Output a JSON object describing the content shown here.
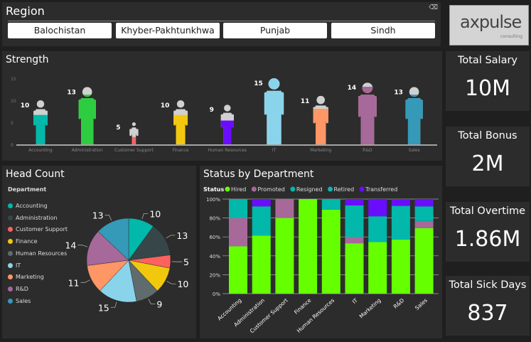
{
  "region": {
    "title": "Region",
    "buttons": [
      "Balochistan",
      "Khyber-Pakhtunkhwa",
      "Punjab",
      "Sindh"
    ],
    "clear_icon": "eraser-icon"
  },
  "logo": {
    "text": "axpulse",
    "sub": "consulting"
  },
  "departments": [
    "Accounting",
    "Administration",
    "Customer Support",
    "Finance",
    "Human Resources",
    "IT",
    "Marketing",
    "R&D",
    "Sales"
  ],
  "colors": {
    "Accounting": "#01b8aa",
    "Administration": "#374649",
    "Customer Support": "#fd625e",
    "Finance": "#f2c80f",
    "Human Resources": "#5f6b6d",
    "IT": "#8ad4eb",
    "Marketing": "#fe9666",
    "R&D": "#a66999",
    "Sales": "#3599b8"
  },
  "strength": {
    "title": "Strength",
    "y_ticks": [
      "0",
      "5",
      "10",
      "15"
    ],
    "ylim": [
      0,
      15
    ]
  },
  "headcount": {
    "title": "Head Count",
    "legend_title": "Department"
  },
  "status": {
    "title": "Status by Department",
    "legend_title": "Status",
    "y_ticks": [
      "0%",
      "20%",
      "40%",
      "60%",
      "80%",
      "100%"
    ]
  },
  "chart_data": [
    {
      "type": "bar",
      "title": "Strength",
      "categories": [
        "Accounting",
        "Administration",
        "Customer Support",
        "Finance",
        "Human Resources",
        "IT",
        "Marketing",
        "R&D",
        "Sales"
      ],
      "values": [
        10,
        13,
        5,
        10,
        9,
        15,
        11,
        14,
        13
      ],
      "ylim": [
        0,
        15
      ],
      "figure_colors": [
        "#01b8aa",
        "#2ecc40",
        "#fd625e",
        "#f2c80f",
        "#6a0dff",
        "#8ad4eb",
        "#fe9666",
        "#a66999",
        "#3599b8"
      ]
    },
    {
      "type": "pie",
      "title": "Head Count",
      "categories": [
        "Accounting",
        "Administration",
        "Customer Support",
        "Finance",
        "Human Resources",
        "IT",
        "Marketing",
        "R&D",
        "Sales"
      ],
      "values": [
        10,
        13,
        5,
        10,
        9,
        15,
        11,
        14,
        13
      ]
    },
    {
      "type": "bar",
      "stacked": "100%",
      "title": "Status by Department",
      "categories": [
        "Accounting",
        "Administration",
        "Customer Support",
        "Finance",
        "Human Resources",
        "IT",
        "Marketing",
        "R&D",
        "Sales"
      ],
      "series": [
        {
          "name": "Hired",
          "color": "#66ff00",
          "values": [
            50,
            61.5,
            80,
            100,
            88.9,
            53.3,
            54.5,
            57.1,
            69.2
          ]
        },
        {
          "name": "Promoted",
          "color": "#a66999",
          "values": [
            30,
            0,
            20,
            0,
            0,
            6.7,
            0,
            0,
            7.7
          ]
        },
        {
          "name": "Resigned",
          "color": "#01b8aa",
          "values": [
            20,
            30.8,
            0,
            0,
            11.1,
            33.3,
            27.3,
            35.7,
            15.4
          ]
        },
        {
          "name": "Retired",
          "color": "#10b3b0",
          "values": [
            0,
            0,
            0,
            0,
            0,
            0,
            0,
            0,
            0
          ]
        },
        {
          "name": "Transferred",
          "color": "#6a0dff",
          "values": [
            0,
            7.7,
            0,
            0,
            0,
            6.7,
            18.2,
            7.1,
            7.7
          ]
        }
      ],
      "ylim": [
        0,
        100
      ]
    }
  ],
  "kpis": [
    {
      "label": "Total Salary",
      "value": "10M"
    },
    {
      "label": "Total Bonus",
      "value": "2M"
    },
    {
      "label": "Total Overtime",
      "value": "1.86M"
    },
    {
      "label": "Total Sick Days",
      "value": "837"
    }
  ]
}
